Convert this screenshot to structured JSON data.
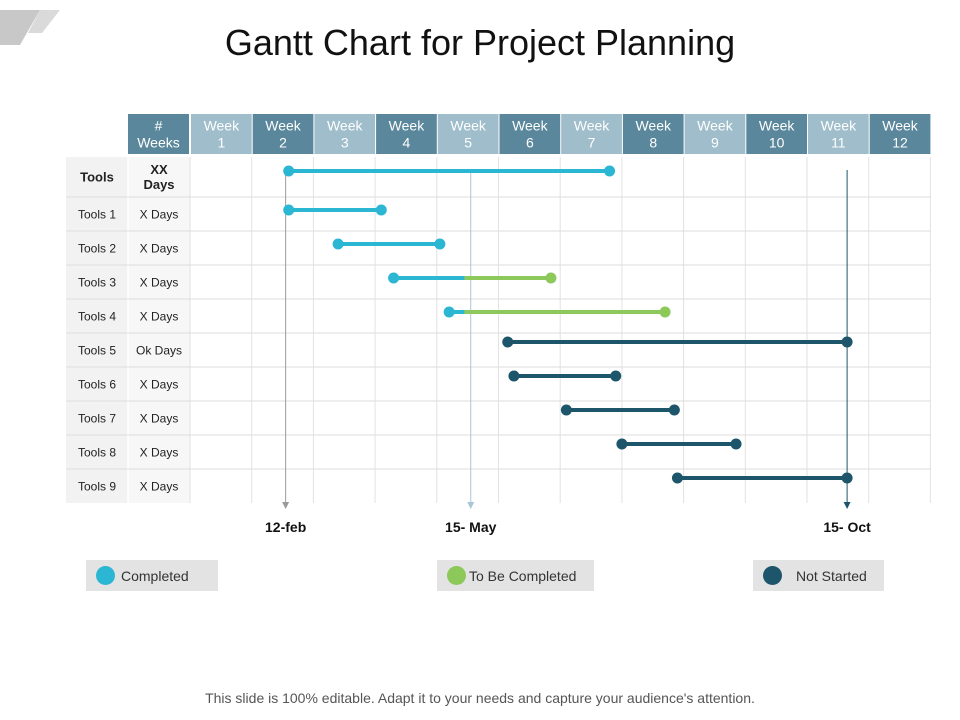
{
  "page": {
    "title": "Gantt Chart for Project Planning",
    "footer": "This slide is 100% editable. Adapt it to your needs and capture your audience's attention."
  },
  "colors": {
    "completed": "#2bb6d3",
    "to_be_completed": "#8cc85a",
    "not_started": "#1d566b",
    "header_dark": "#5a879b",
    "header_light": "#9fbdcb",
    "marker_line": "#9a9a9a"
  },
  "chart_data": {
    "type": "gantt",
    "title": "Gantt Chart for Project Planning",
    "header": {
      "row_label_header": "Tools",
      "duration_header": "XX Days",
      "weeks_label": "# Weeks",
      "weeks": [
        "Week 1",
        "Week 2",
        "Week 3",
        "Week 4",
        "Week 5",
        "Week 6",
        "Week 7",
        "Week 8",
        "Week 9",
        "Week 10",
        "Week 11",
        "Week 12"
      ]
    },
    "x_unit": "week",
    "xlim": [
      0,
      12
    ],
    "tasks": [
      {
        "label": "Tools",
        "duration": "XX Days",
        "summary": true,
        "segments": [
          {
            "start": 1.6,
            "end": 6.8,
            "status": "completed"
          }
        ]
      },
      {
        "label": "Tools 1",
        "duration": "X Days",
        "segments": [
          {
            "start": 1.6,
            "end": 3.1,
            "status": "completed"
          }
        ]
      },
      {
        "label": "Tools 2",
        "duration": "X Days",
        "segments": [
          {
            "start": 2.4,
            "end": 4.05,
            "status": "completed"
          }
        ]
      },
      {
        "label": "Tools 3",
        "duration": "X Days",
        "segments": [
          {
            "start": 3.3,
            "end": 4.45,
            "status": "completed"
          },
          {
            "start": 4.45,
            "end": 5.85,
            "status": "to_be_completed"
          }
        ]
      },
      {
        "label": "Tools 4",
        "duration": "X Days",
        "segments": [
          {
            "start": 4.2,
            "end": 4.45,
            "status": "completed"
          },
          {
            "start": 4.45,
            "end": 7.7,
            "status": "to_be_completed"
          }
        ]
      },
      {
        "label": "Tools 5",
        "duration": "Ok Days",
        "segments": [
          {
            "start": 5.15,
            "end": 10.65,
            "status": "not_started"
          }
        ]
      },
      {
        "label": "Tools 6",
        "duration": "X Days",
        "segments": [
          {
            "start": 5.25,
            "end": 6.9,
            "status": "not_started"
          }
        ]
      },
      {
        "label": "Tools 7",
        "duration": "X Days",
        "segments": [
          {
            "start": 6.1,
            "end": 7.85,
            "status": "not_started"
          }
        ]
      },
      {
        "label": "Tools 8",
        "duration": "X Days",
        "segments": [
          {
            "start": 7.0,
            "end": 8.85,
            "status": "not_started"
          }
        ]
      },
      {
        "label": "Tools 9",
        "duration": "X Days",
        "segments": [
          {
            "start": 7.9,
            "end": 10.65,
            "status": "not_started"
          }
        ]
      }
    ],
    "milestones": [
      {
        "label": "12-feb",
        "x": 1.55
      },
      {
        "label": "15- May",
        "x": 4.55
      },
      {
        "label": "15- Oct",
        "x": 10.65
      }
    ],
    "legend": [
      {
        "key": "completed",
        "label": "Completed"
      },
      {
        "key": "to_be_completed",
        "label": "To Be Completed"
      },
      {
        "key": "not_started",
        "label": "Not Started"
      }
    ],
    "legend_position": "bottom"
  }
}
